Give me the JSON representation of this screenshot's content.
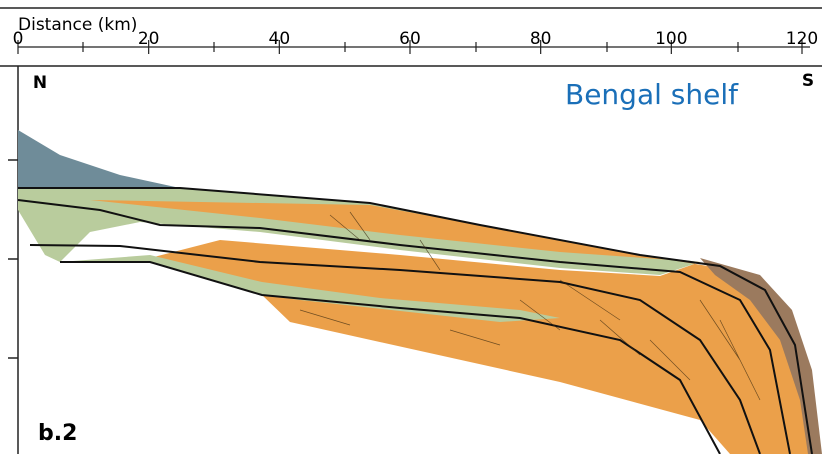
{
  "axis": {
    "label": "Distance (km)",
    "ticks": [
      0,
      20,
      40,
      60,
      80,
      100,
      120
    ]
  },
  "labels": {
    "north": "N",
    "south": "S",
    "region": "Bengal shelf",
    "panel": "b.2"
  }
}
